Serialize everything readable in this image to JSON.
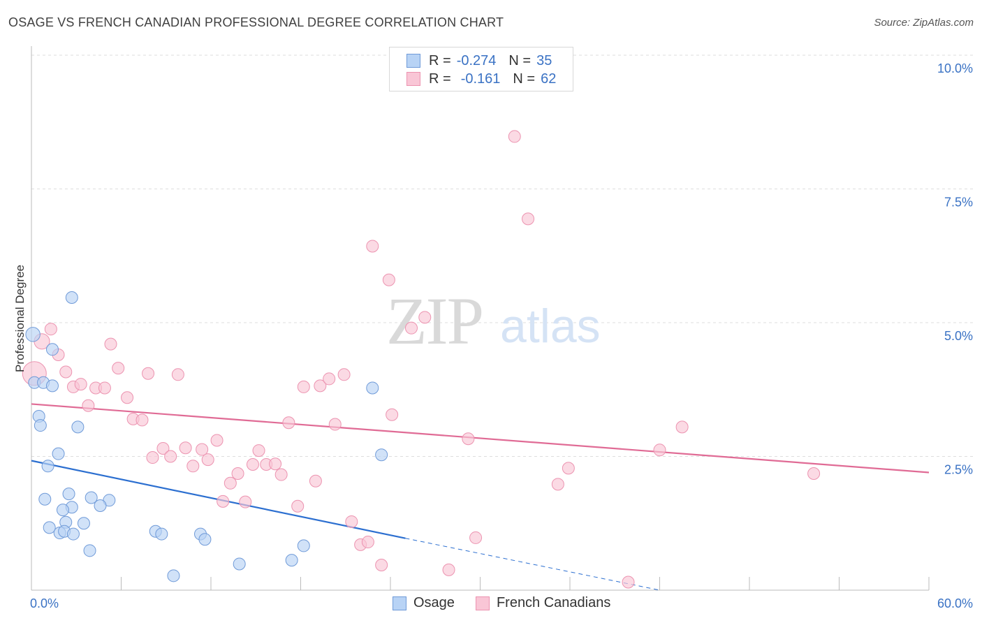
{
  "title": "OSAGE VS FRENCH CANADIAN PROFESSIONAL DEGREE CORRELATION CHART",
  "source": "Source: ZipAtlas.com",
  "watermark": {
    "zip": "ZIP",
    "atlas": "atlas"
  },
  "legend_top": {
    "rows": [
      {
        "r_label": "R =",
        "r_value": "-0.274",
        "n_label": "N =",
        "n_value": "35"
      },
      {
        "r_label": "R =",
        "r_value": "-0.161",
        "n_label": "N =",
        "n_value": "62"
      }
    ]
  },
  "legend_bottom": [
    {
      "label": "Osage"
    },
    {
      "label": "French Canadians"
    }
  ],
  "colors": {
    "osage_fill": "#b8d3f5",
    "osage_stroke": "#6f9ad8",
    "osage_line": "#2c6fd0",
    "fc_fill": "#f9c6d6",
    "fc_stroke": "#ec93b0",
    "fc_line": "#e06b95",
    "tick_label": "#3a72c4",
    "grid": "#dedede"
  },
  "chart_data": {
    "type": "scatter",
    "title": "OSAGE VS FRENCH CANADIAN PROFESSIONAL DEGREE CORRELATION CHART",
    "xlabel": "",
    "ylabel": "Professional Degree",
    "xlim": [
      0,
      60
    ],
    "ylim": [
      0,
      10.0
    ],
    "x_tick_labels": [
      "0.0%",
      "60.0%"
    ],
    "y_ticks": [
      2.5,
      5.0,
      7.5,
      10.0
    ],
    "y_tick_labels": [
      "2.5%",
      "5.0%",
      "7.5%",
      "10.0%"
    ],
    "grid": true,
    "legend_position": "top-center",
    "series": [
      {
        "name": "Osage",
        "r": -0.274,
        "n": 35,
        "trend": {
          "x0": 0,
          "y0": 2.42,
          "x1": 25,
          "y1": 0.97,
          "dash_to_x": 42,
          "dash_to_y": 0.0
        },
        "points": [
          {
            "x": 0.1,
            "y": 4.78,
            "s": 1.2
          },
          {
            "x": 0.2,
            "y": 3.88
          },
          {
            "x": 0.8,
            "y": 3.88
          },
          {
            "x": 1.4,
            "y": 4.5
          },
          {
            "x": 2.7,
            "y": 5.47
          },
          {
            "x": 1.4,
            "y": 3.82
          },
          {
            "x": 0.5,
            "y": 3.25
          },
          {
            "x": 0.6,
            "y": 3.08
          },
          {
            "x": 3.1,
            "y": 3.05
          },
          {
            "x": 1.8,
            "y": 2.55
          },
          {
            "x": 1.1,
            "y": 2.32
          },
          {
            "x": 0.9,
            "y": 1.7
          },
          {
            "x": 2.5,
            "y": 1.8
          },
          {
            "x": 2.7,
            "y": 1.55
          },
          {
            "x": 2.1,
            "y": 1.5
          },
          {
            "x": 4.0,
            "y": 1.73
          },
          {
            "x": 5.2,
            "y": 1.68
          },
          {
            "x": 4.6,
            "y": 1.58
          },
          {
            "x": 1.2,
            "y": 1.17
          },
          {
            "x": 2.3,
            "y": 1.27
          },
          {
            "x": 3.5,
            "y": 1.25
          },
          {
            "x": 1.9,
            "y": 1.07
          },
          {
            "x": 2.2,
            "y": 1.1
          },
          {
            "x": 2.8,
            "y": 1.05
          },
          {
            "x": 3.9,
            "y": 0.74
          },
          {
            "x": 8.3,
            "y": 1.1
          },
          {
            "x": 8.7,
            "y": 1.05
          },
          {
            "x": 11.3,
            "y": 1.05
          },
          {
            "x": 11.6,
            "y": 0.95
          },
          {
            "x": 9.5,
            "y": 0.27
          },
          {
            "x": 13.9,
            "y": 0.49
          },
          {
            "x": 17.4,
            "y": 0.56
          },
          {
            "x": 18.2,
            "y": 0.83
          },
          {
            "x": 22.8,
            "y": 3.78
          },
          {
            "x": 23.4,
            "y": 2.53
          }
        ]
      },
      {
        "name": "French Canadians",
        "r": -0.161,
        "n": 62,
        "trend": {
          "x0": 0,
          "y0": 3.48,
          "x1": 60,
          "y1": 2.2
        },
        "points": [
          {
            "x": 0.2,
            "y": 4.05,
            "s": 2.0
          },
          {
            "x": 0.7,
            "y": 4.65,
            "s": 1.3
          },
          {
            "x": 1.3,
            "y": 4.88
          },
          {
            "x": 1.8,
            "y": 4.4
          },
          {
            "x": 2.3,
            "y": 4.08
          },
          {
            "x": 2.8,
            "y": 3.8
          },
          {
            "x": 3.3,
            "y": 3.85
          },
          {
            "x": 3.8,
            "y": 3.45
          },
          {
            "x": 4.3,
            "y": 3.78
          },
          {
            "x": 4.9,
            "y": 3.78
          },
          {
            "x": 5.3,
            "y": 4.6
          },
          {
            "x": 5.8,
            "y": 4.15
          },
          {
            "x": 6.4,
            "y": 3.6
          },
          {
            "x": 6.8,
            "y": 3.2
          },
          {
            "x": 7.4,
            "y": 3.18
          },
          {
            "x": 7.8,
            "y": 4.05
          },
          {
            "x": 8.1,
            "y": 2.48
          },
          {
            "x": 8.8,
            "y": 2.65
          },
          {
            "x": 9.3,
            "y": 2.5
          },
          {
            "x": 9.8,
            "y": 4.03
          },
          {
            "x": 10.3,
            "y": 2.66
          },
          {
            "x": 10.8,
            "y": 2.32
          },
          {
            "x": 11.4,
            "y": 2.63
          },
          {
            "x": 11.8,
            "y": 2.44
          },
          {
            "x": 12.4,
            "y": 2.8
          },
          {
            "x": 12.8,
            "y": 1.66
          },
          {
            "x": 13.3,
            "y": 2.0
          },
          {
            "x": 13.8,
            "y": 2.18
          },
          {
            "x": 14.3,
            "y": 1.65
          },
          {
            "x": 14.8,
            "y": 2.35
          },
          {
            "x": 15.2,
            "y": 2.61
          },
          {
            "x": 15.7,
            "y": 2.35
          },
          {
            "x": 16.3,
            "y": 2.36
          },
          {
            "x": 16.7,
            "y": 2.16
          },
          {
            "x": 17.2,
            "y": 3.13
          },
          {
            "x": 17.8,
            "y": 1.57
          },
          {
            "x": 18.2,
            "y": 3.8
          },
          {
            "x": 19.0,
            "y": 2.04
          },
          {
            "x": 19.3,
            "y": 3.82
          },
          {
            "x": 19.9,
            "y": 3.95
          },
          {
            "x": 20.3,
            "y": 3.1
          },
          {
            "x": 20.9,
            "y": 4.03
          },
          {
            "x": 21.4,
            "y": 1.28
          },
          {
            "x": 22.0,
            "y": 0.85
          },
          {
            "x": 22.5,
            "y": 0.9
          },
          {
            "x": 22.8,
            "y": 6.43
          },
          {
            "x": 23.4,
            "y": 0.47
          },
          {
            "x": 23.9,
            "y": 5.8
          },
          {
            "x": 24.1,
            "y": 3.28
          },
          {
            "x": 25.4,
            "y": 4.9
          },
          {
            "x": 26.3,
            "y": 5.1
          },
          {
            "x": 27.9,
            "y": 0.38
          },
          {
            "x": 29.2,
            "y": 2.83
          },
          {
            "x": 29.7,
            "y": 0.98
          },
          {
            "x": 32.3,
            "y": 8.48
          },
          {
            "x": 33.2,
            "y": 6.94
          },
          {
            "x": 35.2,
            "y": 1.98
          },
          {
            "x": 35.9,
            "y": 2.28
          },
          {
            "x": 39.9,
            "y": 0.15
          },
          {
            "x": 42.0,
            "y": 2.62
          },
          {
            "x": 43.5,
            "y": 3.05
          },
          {
            "x": 52.3,
            "y": 2.18
          }
        ]
      }
    ]
  }
}
